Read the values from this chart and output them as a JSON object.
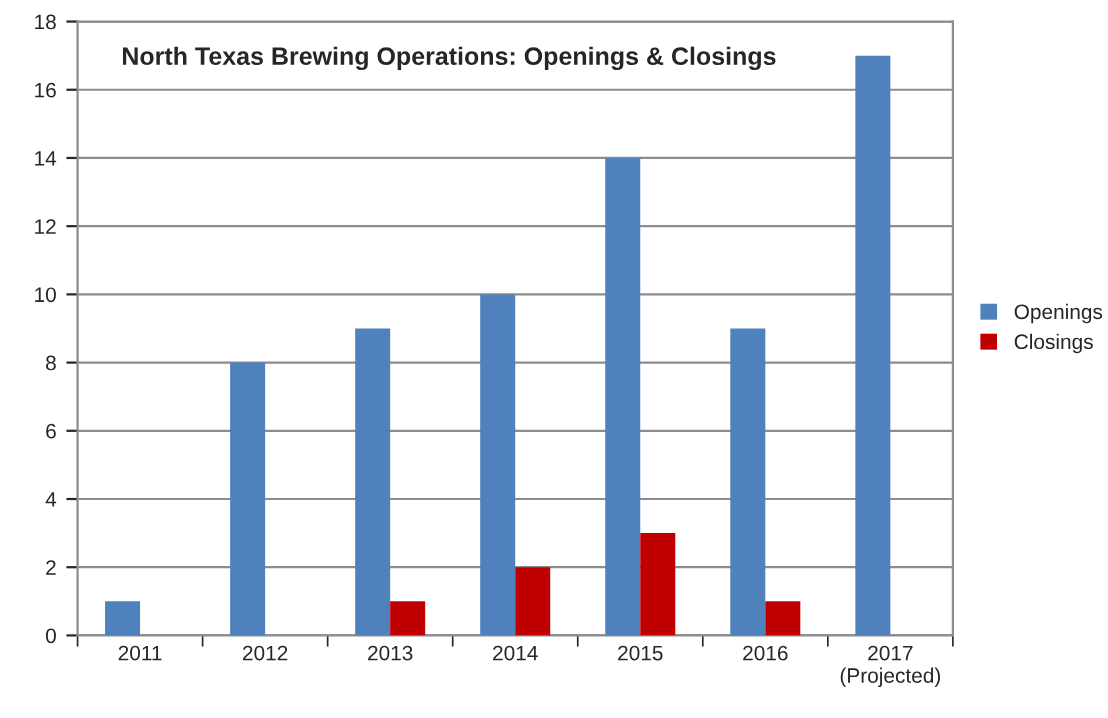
{
  "chart_data": {
    "type": "bar",
    "title": "North Texas Brewing Operations: Openings & Closings",
    "categories": [
      "2011",
      "2012",
      "2013",
      "2014",
      "2015",
      "2016",
      "2017\n(Projected)"
    ],
    "series": [
      {
        "name": "Openings",
        "color": "#4f81bd",
        "values": [
          1,
          8,
          9,
          10,
          14,
          9,
          17
        ]
      },
      {
        "name": "Closings",
        "color": "#c00000",
        "values": [
          null,
          null,
          1,
          2,
          3,
          1,
          null
        ]
      }
    ],
    "ylim": [
      0,
      18
    ],
    "yticks": [
      0,
      2,
      4,
      6,
      8,
      10,
      12,
      14,
      16,
      18
    ],
    "grid": "y",
    "legend": "right"
  }
}
